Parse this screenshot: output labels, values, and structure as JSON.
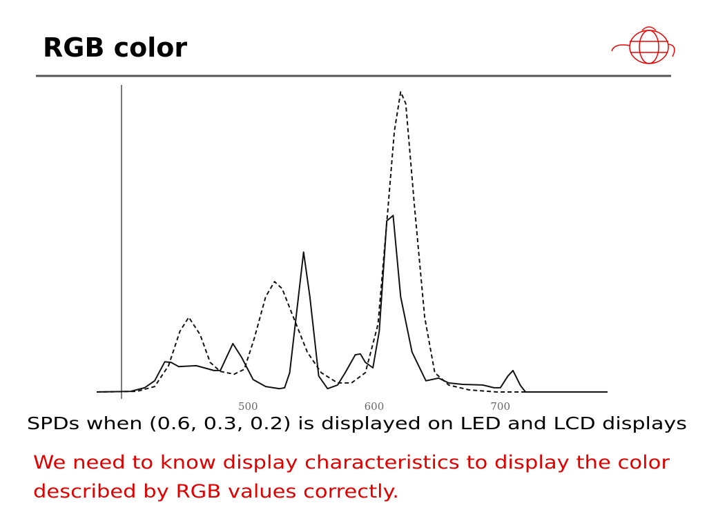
{
  "header": {
    "title": "RGB color"
  },
  "chart_data": {
    "type": "line",
    "xlim": [
      380,
      785
    ],
    "ylim": [
      0,
      100
    ],
    "xticks": [
      500,
      600,
      700
    ],
    "series": [
      {
        "color": "#111111",
        "dash": false,
        "x": [
          380,
          407,
          418,
          426,
          434,
          439,
          445,
          459,
          473,
          478,
          488,
          495,
          504,
          514,
          525,
          529,
          533,
          544,
          549,
          556,
          563,
          571,
          577,
          585,
          589,
          593,
          599,
          604,
          610,
          615,
          621,
          630,
          641,
          651,
          659,
          670,
          686,
          695,
          700,
          706,
          710,
          716,
          720,
          785
        ],
        "values": [
          0,
          0.2,
          1.4,
          3.7,
          10.0,
          9.8,
          8.4,
          8.7,
          7.1,
          7.1,
          16.0,
          11.4,
          4.1,
          1.8,
          1.1,
          1.4,
          6.4,
          46.3,
          31.5,
          5.3,
          1.1,
          2.3,
          6.4,
          12.3,
          12.6,
          9.8,
          8.0,
          20.1,
          56.6,
          58.4,
          31.5,
          13.2,
          3.7,
          4.6,
          3.0,
          2.5,
          2.3,
          1.4,
          1.4,
          5.3,
          7.1,
          2.1,
          0,
          0
        ]
      },
      {
        "color": "#111111",
        "dash": true,
        "x": [
          380,
          412,
          426,
          437,
          446,
          453,
          462,
          470,
          478,
          489,
          497,
          505,
          514,
          521,
          527,
          536,
          547,
          558,
          571,
          582,
          593,
          603,
          611,
          616,
          621,
          625,
          632,
          640,
          648,
          659,
          675,
          697,
          785
        ],
        "values": [
          0,
          0.2,
          1.8,
          8.7,
          20.1,
          24.7,
          19.0,
          9.8,
          6.8,
          5.9,
          7.5,
          17.8,
          31.5,
          36.5,
          34.2,
          24.7,
          13.2,
          6.4,
          3.0,
          3.0,
          6.4,
          22.4,
          61.2,
          86.3,
          99.3,
          95.4,
          61.2,
          24.7,
          6.4,
          2.3,
          0.7,
          0,
          0
        ]
      }
    ]
  },
  "caption": "SPDs when (0.6, 0.3, 0.2) is displayed on LED and LCD displays",
  "note_lines": [
    "We need to know display characteristics to display the color",
    "described by RGB values correctly."
  ]
}
